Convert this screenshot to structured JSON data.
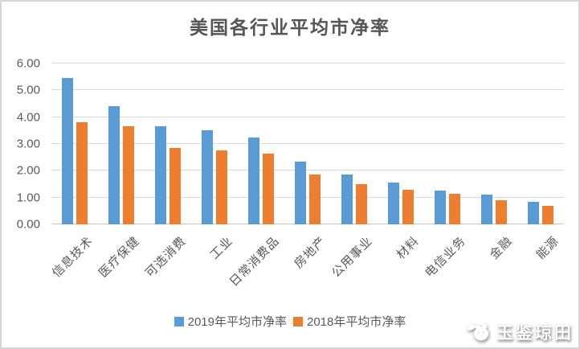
{
  "title": "美国各行业平均市净率",
  "legend": [
    {
      "label": "2019年平均市净率",
      "color": "#5B9BD5"
    },
    {
      "label": "2018年平均市净率",
      "color": "#ED7D31"
    }
  ],
  "watermark": {
    "text": "玉鉴琼田",
    "icon": "panda-mascot-icon"
  },
  "chart_data": {
    "type": "bar",
    "title": "美国各行业平均市净率",
    "categories": [
      "信息技术",
      "医疗保健",
      "可选消费",
      "工业",
      "日常消费品",
      "房地产",
      "公用事业",
      "材料",
      "电信业务",
      "金融",
      "能源"
    ],
    "series": [
      {
        "name": "2019年平均市净率",
        "color": "#5B9BD5",
        "values": [
          5.45,
          4.4,
          3.65,
          3.5,
          3.25,
          2.35,
          1.85,
          1.55,
          1.25,
          1.1,
          0.85
        ]
      },
      {
        "name": "2018年平均市净率",
        "color": "#ED7D31",
        "values": [
          3.8,
          3.65,
          2.85,
          2.75,
          2.65,
          1.85,
          1.5,
          1.3,
          1.15,
          0.9,
          0.7
        ]
      }
    ],
    "xlabel": "",
    "ylabel": "",
    "ylim": [
      0,
      6
    ],
    "ytick_step": 1,
    "ytick_labels": [
      "0.00",
      "1.00",
      "2.00",
      "3.00",
      "4.00",
      "5.00",
      "6.00"
    ],
    "grid": "horizontal",
    "legend_position": "bottom"
  }
}
